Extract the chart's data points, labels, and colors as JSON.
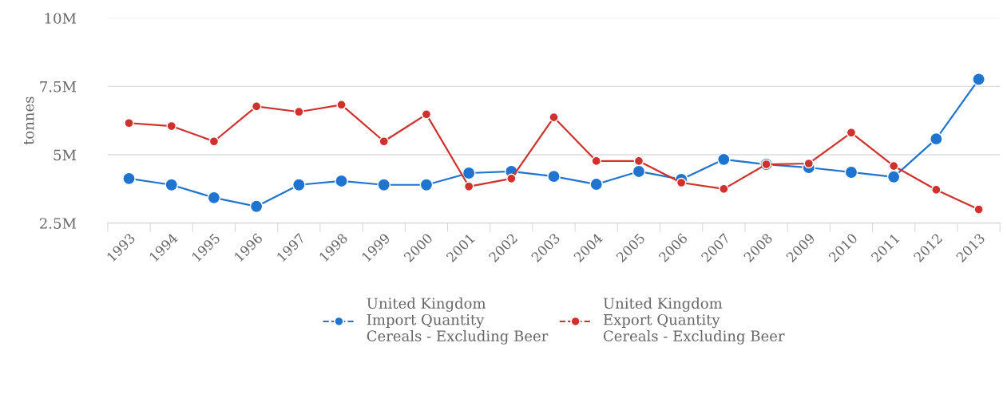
{
  "chart_data": {
    "type": "line",
    "ylabel": "tonnes",
    "categories": [
      "1993",
      "1994",
      "1995",
      "1996",
      "1997",
      "1998",
      "1999",
      "2000",
      "2001",
      "2002",
      "2003",
      "2004",
      "2005",
      "2006",
      "2007",
      "2008",
      "2009",
      "2010",
      "2011",
      "2012",
      "2013"
    ],
    "series": [
      {
        "name": "United Kingdom\nImport Quantity\nCereals - Excluding Beer",
        "color": "#1f74cf",
        "values": [
          4130000,
          3900000,
          3430000,
          3110000,
          3900000,
          4040000,
          3900000,
          3900000,
          4330000,
          4390000,
          4210000,
          3920000,
          4390000,
          4100000,
          4830000,
          4650000,
          4530000,
          4360000,
          4190000,
          5580000,
          7760000
        ]
      },
      {
        "name": "United Kingdom\nExport Quantity\nCereals - Excluding Beer",
        "color": "#d0312d",
        "values": [
          6160000,
          6050000,
          5490000,
          6770000,
          6570000,
          6830000,
          5490000,
          6480000,
          3840000,
          4130000,
          6370000,
          4770000,
          4770000,
          3980000,
          3750000,
          4650000,
          4680000,
          5810000,
          4590000,
          3720000,
          3000000
        ]
      }
    ],
    "ylim": [
      2500000,
      10000000
    ],
    "yticks": [
      {
        "value": 2500000,
        "label": "2.5M"
      },
      {
        "value": 5000000,
        "label": "5M"
      },
      {
        "value": 7500000,
        "label": "7.5M"
      },
      {
        "value": 10000000,
        "label": "10M"
      }
    ],
    "grid": "y",
    "legend": "bottom",
    "marker": "circle",
    "line_style": "solid"
  }
}
